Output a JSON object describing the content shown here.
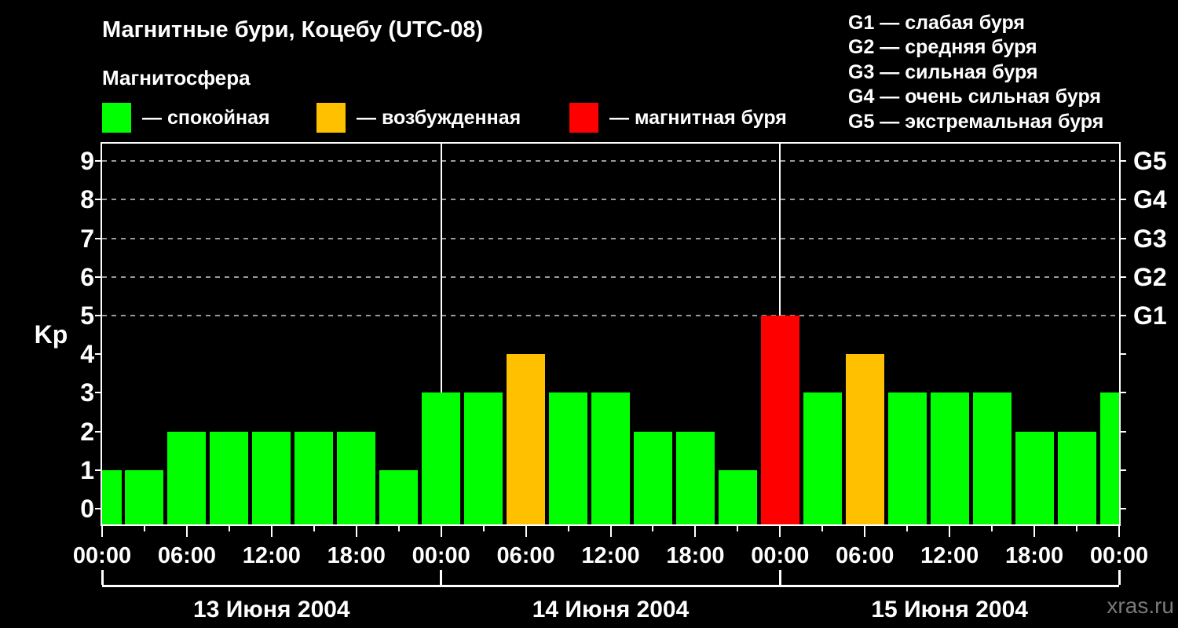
{
  "header": {
    "title": "Магнитные бури, Коцебу (UTC-08)",
    "subtitle": "Магнитосфера"
  },
  "legend": {
    "items": [
      {
        "name": "quiet",
        "label": "— спокойная",
        "color": "#00ff00"
      },
      {
        "name": "excited",
        "label": "— возбужденная",
        "color": "#ffc000"
      },
      {
        "name": "storm",
        "label": "— магнитная буря",
        "color": "#ff0000"
      }
    ]
  },
  "g_legend": {
    "items": [
      "G1 — слабая буря",
      "G2 — средняя буря",
      "G3 — сильная буря",
      "G4 — очень сильная буря",
      "G5 — экстремальная буря"
    ]
  },
  "watermark": "xras.ru",
  "chart_data": {
    "type": "bar",
    "title": "Магнитные бури, Коцебу (UTC-08)",
    "ylabel": "Kp",
    "ylim": [
      0,
      9
    ],
    "y_ticks": [
      0,
      1,
      2,
      3,
      4,
      5,
      6,
      7,
      8,
      9
    ],
    "grid_levels": [
      5,
      6,
      7,
      8,
      9
    ],
    "grid": "dashed horizontal lines at Kp 5..9",
    "legend_position": "top",
    "bar_interval_hours": 3,
    "x_hours": [
      0,
      3,
      6,
      9,
      12,
      15,
      18,
      21,
      24,
      27,
      30,
      33,
      36,
      39,
      42,
      45,
      48,
      51,
      54,
      57,
      60,
      63,
      66,
      69,
      72
    ],
    "values": [
      1,
      1,
      2,
      2,
      2,
      2,
      2,
      1,
      3,
      3,
      4,
      3,
      3,
      2,
      2,
      1,
      5,
      3,
      4,
      3,
      3,
      3,
      2,
      2,
      3
    ],
    "color_rule": {
      "quiet_max_kp": 3,
      "excited_kp": 4,
      "storm_min_kp": 5
    },
    "x_tick_hours": [
      0,
      6,
      12,
      18,
      24,
      30,
      36,
      42,
      48,
      54,
      60,
      66,
      72
    ],
    "x_tick_labels": [
      "00:00",
      "06:00",
      "12:00",
      "18:00",
      "00:00",
      "06:00",
      "12:00",
      "18:00",
      "00:00",
      "06:00",
      "12:00",
      "18:00",
      "00:00"
    ],
    "day_boundary_hours": [
      0,
      24,
      48,
      72
    ],
    "day_separator_lines_hours": [
      24,
      48
    ],
    "days": [
      {
        "label": "13 Июня 2004",
        "center_hour": 12
      },
      {
        "label": "14 Июня 2004",
        "center_hour": 36
      },
      {
        "label": "15 Июня 2004",
        "center_hour": 60
      }
    ],
    "right_axis": [
      {
        "label": "G1",
        "kp": 5
      },
      {
        "label": "G2",
        "kp": 6
      },
      {
        "label": "G3",
        "kp": 7
      },
      {
        "label": "G4",
        "kp": 8
      },
      {
        "label": "G5",
        "kp": 9
      }
    ]
  }
}
